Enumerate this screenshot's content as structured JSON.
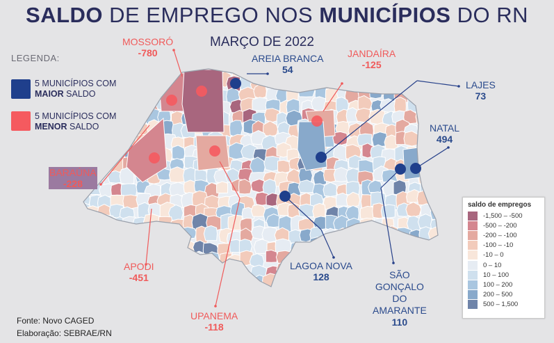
{
  "title": {
    "p1": "SALDO",
    "p2": " DE EMPREGO NOS ",
    "p3": "MUNICÍPIOS",
    "p4": " DO RN"
  },
  "subtitle": "MARÇO DE 2022",
  "legend": {
    "title": "LEGENDA:",
    "maior": {
      "line1": "5 MUNICÍPIOS COM",
      "bold": "MAIOR",
      "rest": " SALDO",
      "color": "#1f3f8c"
    },
    "menor": {
      "line1": "5 MUNICÍPIOS COM",
      "bold": "MENOR",
      "rest": " SALDO",
      "color": "#f55a5f"
    }
  },
  "cities": {
    "mossoro": {
      "name": "MOSSORÓ",
      "value": "-780"
    },
    "areia_branca": {
      "name": "AREIA BRANCA",
      "value": "54"
    },
    "jandaira": {
      "name": "JANDAÍRA",
      "value": "-125"
    },
    "lajes": {
      "name": "LAJES",
      "value": "73"
    },
    "natal": {
      "name": "NATAL",
      "value": "494"
    },
    "barauna": {
      "name": "BARAÚNA",
      "value": "-228"
    },
    "apodi": {
      "name": "APODI",
      "value": "-451"
    },
    "upanema": {
      "name": "UPANEMA",
      "value": "-118"
    },
    "lagoa_nova": {
      "name": "LAGOA NOVA",
      "value": "128"
    },
    "sao_goncalo": {
      "line1": "SÃO",
      "line2": "GONÇALO",
      "line3": "DO",
      "line4": "AMARANTE",
      "value": "110"
    }
  },
  "source": {
    "line1": "Fonte: Novo CAGED",
    "line2": "Elaboração: SEBRAE/RN"
  },
  "color_scale": {
    "title": "saldo de empregos",
    "items": [
      {
        "label": "-1,500 – -500",
        "color": "#a8667e"
      },
      {
        "label": "-500 – -200",
        "color": "#d4868f"
      },
      {
        "label": "-200 – -100",
        "color": "#e4a9a0"
      },
      {
        "label": "-100 – -10",
        "color": "#f2cbbb"
      },
      {
        "label": "-10 – 0",
        "color": "#f8e6da"
      },
      {
        "label": "0 – 10",
        "color": "#e6ecf3"
      },
      {
        "label": "10 – 100",
        "color": "#cfe0ee"
      },
      {
        "label": "100 – 200",
        "color": "#a9c6e0"
      },
      {
        "label": "200 – 500",
        "color": "#88a9cb"
      },
      {
        "label": "500 – 1,500",
        "color": "#6f84a9"
      }
    ]
  }
}
